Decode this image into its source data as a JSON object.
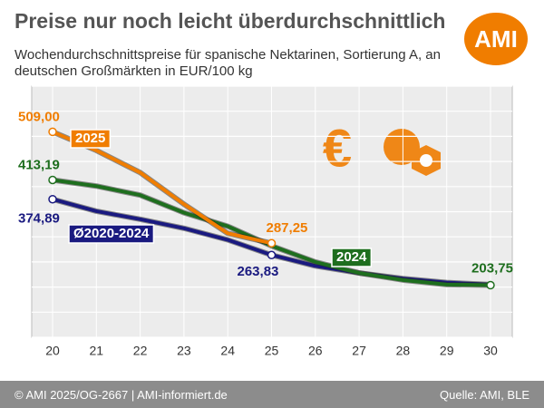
{
  "chart_data": {
    "type": "line",
    "title": "Preise nur noch leicht überdurchschnittlich",
    "subtitle": "Wochendurchschnittspreise für spanische Nektarinen, Sortierung A, an deutschen Großmärkten in EUR/100 kg",
    "logo": "AMI",
    "footer_left": "© AMI 2025/OG-2667 | AMI-informiert.de",
    "footer_right": "Quelle: AMI, BLE",
    "categories": [
      "20",
      "21",
      "22",
      "23",
      "24",
      "25",
      "26",
      "27",
      "28",
      "29",
      "30"
    ],
    "ylim": [
      100,
      600
    ],
    "yticks": [
      100,
      150,
      200,
      250,
      300,
      350,
      400,
      450,
      500,
      550,
      600
    ],
    "grid": true,
    "series": [
      {
        "name": "Ø2020-2024",
        "color": "#1a1a80",
        "values": [
          374.89,
          351,
          335,
          317,
          294,
          263.83,
          242,
          228,
          217,
          209,
          205
        ],
        "value_labels": [
          "374,89",
          null,
          null,
          null,
          null,
          "263,83",
          null,
          null,
          null,
          null,
          null
        ]
      },
      {
        "name": "2024",
        "color": "#1e6e1e",
        "values": [
          413.19,
          401,
          383,
          348,
          321,
          282,
          250,
          228,
          214,
          205,
          203.75
        ],
        "value_labels": [
          "413,19",
          null,
          null,
          null,
          null,
          null,
          null,
          null,
          null,
          null,
          "203,75"
        ]
      },
      {
        "name": "2025",
        "color": "#f07d00",
        "values": [
          509,
          472,
          428,
          365,
          307,
          287.25,
          null,
          null,
          null,
          null,
          null
        ],
        "value_labels": [
          "509,00",
          null,
          null,
          null,
          null,
          "287,25",
          null,
          null,
          null,
          null,
          null
        ]
      }
    ]
  }
}
